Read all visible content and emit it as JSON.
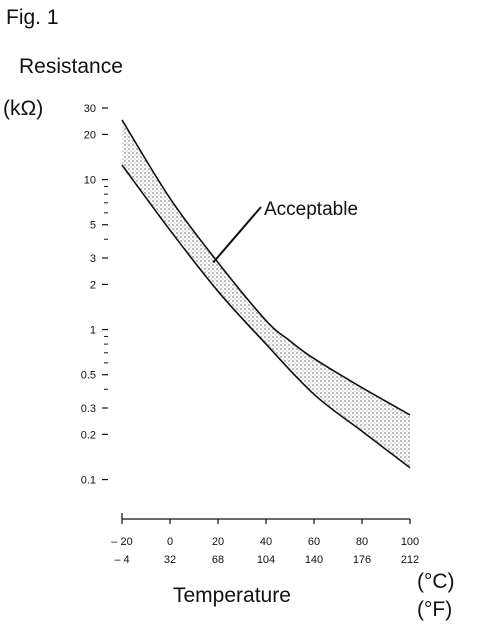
{
  "figure_label": "Fig. 1",
  "chart_data": {
    "type": "area",
    "title": "",
    "ylabel": "Resistance",
    "yunit": "(kΩ)",
    "xlabel": "Temperature",
    "xunit_c": "(°C)",
    "xunit_f": "(°F)",
    "yscale": "log",
    "ylim": [
      0.1,
      30
    ],
    "xlim": [
      -20,
      100
    ],
    "grid": false,
    "y_tick_labels": [
      {
        "v": 30,
        "label": "30"
      },
      {
        "v": 20,
        "label": "20"
      },
      {
        "v": 10,
        "label": "10"
      },
      {
        "v": 5,
        "label": "5"
      },
      {
        "v": 3,
        "label": "3"
      },
      {
        "v": 2,
        "label": "2"
      },
      {
        "v": 1,
        "label": "1"
      },
      {
        "v": 0.5,
        "label": "0.5"
      },
      {
        "v": 0.3,
        "label": "0.3"
      },
      {
        "v": 0.2,
        "label": "0.2"
      },
      {
        "v": 0.1,
        "label": "0.1"
      }
    ],
    "y_minor_ticks": [
      9,
      8,
      7,
      6,
      4,
      0.9,
      0.8,
      0.7,
      0.6,
      0.4
    ],
    "x_ticks_c": [
      "– 20",
      "0",
      "20",
      "40",
      "60",
      "80",
      "100"
    ],
    "x_ticks_f": [
      "– 4",
      "32",
      "68",
      "104",
      "140",
      "176",
      "212"
    ],
    "x_tick_values": [
      -20,
      0,
      20,
      40,
      60,
      80,
      100
    ],
    "series": [
      {
        "x": [
          -20,
          0,
          20,
          40,
          50,
          60,
          80,
          100
        ],
        "values": [
          25,
          7.5,
          2.8,
          1.15,
          0.84,
          0.64,
          0.41,
          0.27
        ]
      },
      {
        "x": [
          -20,
          0,
          20,
          40,
          60,
          80,
          100
        ],
        "values": [
          12.5,
          4.6,
          1.8,
          0.8,
          0.37,
          0.21,
          0.12
        ]
      }
    ],
    "band_label": "Acceptable",
    "colors": {
      "line": "#111111",
      "band": "#cfcfcf"
    }
  }
}
